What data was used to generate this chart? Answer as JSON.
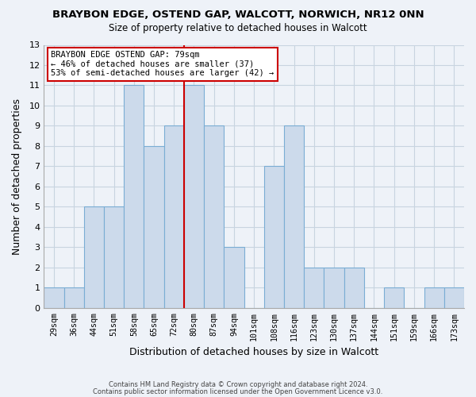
{
  "title": "BRAYBON EDGE, OSTEND GAP, WALCOTT, NORWICH, NR12 0NN",
  "subtitle": "Size of property relative to detached houses in Walcott",
  "xlabel": "Distribution of detached houses by size in Walcott",
  "ylabel": "Number of detached properties",
  "bar_labels": [
    "29sqm",
    "36sqm",
    "44sqm",
    "51sqm",
    "58sqm",
    "65sqm",
    "72sqm",
    "80sqm",
    "87sqm",
    "94sqm",
    "101sqm",
    "108sqm",
    "116sqm",
    "123sqm",
    "130sqm",
    "137sqm",
    "144sqm",
    "151sqm",
    "159sqm",
    "166sqm",
    "173sqm"
  ],
  "bar_values": [
    1,
    1,
    5,
    5,
    11,
    8,
    9,
    11,
    9,
    3,
    0,
    7,
    9,
    2,
    2,
    2,
    0,
    1,
    0,
    1,
    1
  ],
  "bar_color": "#ccdaeb",
  "bar_edge_color": "#7aadd4",
  "marker_line_color": "#cc0000",
  "marker_line_index": 7,
  "ylim": [
    0,
    13
  ],
  "yticks": [
    0,
    1,
    2,
    3,
    4,
    5,
    6,
    7,
    8,
    9,
    10,
    11,
    12,
    13
  ],
  "annotation_title": "BRAYBON EDGE OSTEND GAP: 79sqm",
  "annotation_line1": "← 46% of detached houses are smaller (37)",
  "annotation_line2": "53% of semi-detached houses are larger (42) →",
  "annotation_box_color": "#ffffff",
  "annotation_box_edge": "#cc0000",
  "footer_line1": "Contains HM Land Registry data © Crown copyright and database right 2024.",
  "footer_line2": "Contains public sector information licensed under the Open Government Licence v3.0.",
  "grid_color": "#c8d4e0",
  "background_color": "#eef2f8"
}
